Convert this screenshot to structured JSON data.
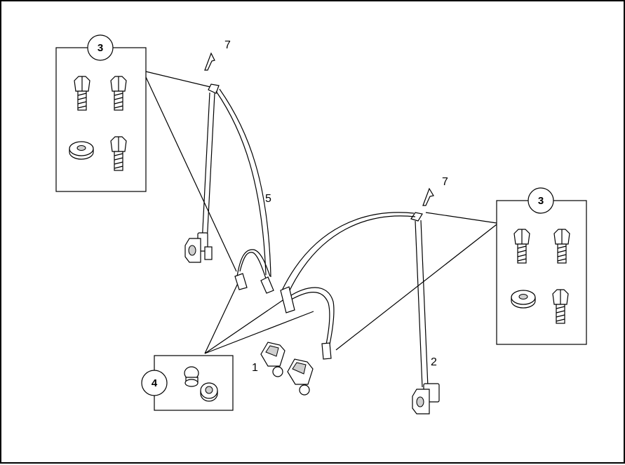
{
  "callouts": {
    "hardware_left": "3",
    "hardware_right": "3",
    "anchor_kit": "4"
  },
  "labels": {
    "buckles": "1",
    "right_retractor_belt": "2",
    "left_retractor_belt": "5",
    "cover_left": "7",
    "cover_right": "7"
  },
  "icons": [
    "bolt",
    "washer",
    "stud",
    "spacer",
    "retractor",
    "buckle",
    "tongue",
    "trim-cover"
  ]
}
